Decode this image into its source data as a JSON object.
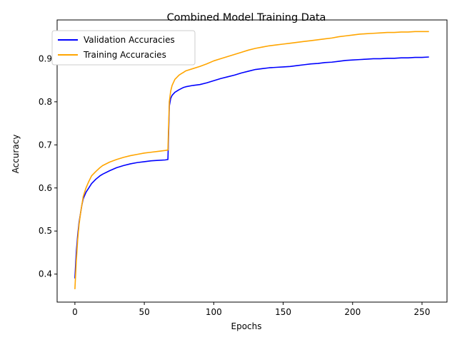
{
  "chart_data": {
    "type": "line",
    "title": "Combined Model Training Data",
    "xlabel": "Epochs",
    "ylabel": "Accuracy",
    "xlim": [
      -12.8,
      268
    ],
    "ylim": [
      0.335,
      0.99
    ],
    "xticks": [
      0,
      50,
      100,
      150,
      200,
      250
    ],
    "yticks": [
      0.4,
      0.5,
      0.6,
      0.7,
      0.8,
      0.9
    ],
    "xtick_labels": [
      "0",
      "50",
      "100",
      "150",
      "200",
      "250"
    ],
    "ytick_labels": [
      "0.4",
      "0.5",
      "0.6",
      "0.7",
      "0.8",
      "0.9"
    ],
    "grid": false,
    "legend": "top-left",
    "series": [
      {
        "name": "Validation Accuracies",
        "color": "#0000ff",
        "x": [
          0,
          1,
          2,
          3,
          4,
          5,
          6,
          8,
          10,
          12,
          15,
          18,
          20,
          25,
          30,
          35,
          40,
          45,
          50,
          55,
          60,
          65,
          67,
          68,
          69,
          70,
          72,
          75,
          78,
          80,
          85,
          90,
          95,
          100,
          105,
          110,
          115,
          120,
          125,
          130,
          135,
          140,
          145,
          150,
          155,
          160,
          165,
          170,
          175,
          180,
          185,
          190,
          195,
          200,
          205,
          210,
          215,
          220,
          225,
          230,
          235,
          240,
          245,
          250,
          255
        ],
        "y": [
          0.39,
          0.45,
          0.49,
          0.52,
          0.54,
          0.56,
          0.575,
          0.59,
          0.6,
          0.61,
          0.62,
          0.628,
          0.632,
          0.64,
          0.647,
          0.652,
          0.656,
          0.659,
          0.661,
          0.663,
          0.664,
          0.665,
          0.666,
          0.79,
          0.808,
          0.815,
          0.822,
          0.828,
          0.833,
          0.835,
          0.838,
          0.84,
          0.844,
          0.849,
          0.854,
          0.858,
          0.862,
          0.867,
          0.871,
          0.875,
          0.877,
          0.879,
          0.88,
          0.881,
          0.882,
          0.884,
          0.886,
          0.888,
          0.889,
          0.891,
          0.892,
          0.894,
          0.896,
          0.897,
          0.898,
          0.899,
          0.9,
          0.9,
          0.901,
          0.901,
          0.902,
          0.902,
          0.903,
          0.903,
          0.904
        ]
      },
      {
        "name": "Training Accuracies",
        "color": "#ffa500",
        "x": [
          0,
          1,
          2,
          3,
          4,
          5,
          6,
          8,
          10,
          12,
          15,
          18,
          20,
          25,
          30,
          35,
          40,
          45,
          50,
          55,
          60,
          65,
          67,
          68,
          69,
          70,
          72,
          75,
          78,
          80,
          85,
          90,
          95,
          100,
          105,
          110,
          115,
          120,
          125,
          130,
          135,
          140,
          145,
          150,
          155,
          160,
          165,
          170,
          175,
          180,
          185,
          190,
          195,
          200,
          205,
          210,
          215,
          220,
          225,
          230,
          235,
          240,
          245,
          250,
          255
        ],
        "y": [
          0.365,
          0.43,
          0.48,
          0.515,
          0.54,
          0.56,
          0.58,
          0.6,
          0.615,
          0.628,
          0.638,
          0.647,
          0.652,
          0.66,
          0.666,
          0.671,
          0.675,
          0.678,
          0.681,
          0.683,
          0.685,
          0.687,
          0.688,
          0.8,
          0.825,
          0.838,
          0.852,
          0.862,
          0.868,
          0.872,
          0.877,
          0.882,
          0.888,
          0.895,
          0.9,
          0.905,
          0.91,
          0.915,
          0.92,
          0.924,
          0.927,
          0.93,
          0.932,
          0.934,
          0.936,
          0.938,
          0.94,
          0.942,
          0.944,
          0.946,
          0.948,
          0.951,
          0.953,
          0.955,
          0.957,
          0.958,
          0.959,
          0.96,
          0.961,
          0.961,
          0.962,
          0.962,
          0.963,
          0.963,
          0.963
        ]
      }
    ]
  }
}
